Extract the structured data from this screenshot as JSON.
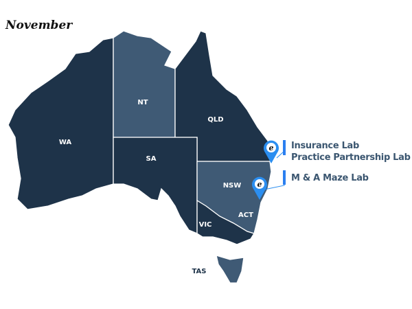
{
  "title": "November",
  "colors": {
    "state_dark": "#1e3349",
    "state_light": "#3f5a75",
    "pin": "#2b8ef0",
    "label_text": "#3b5670"
  },
  "states": [
    {
      "code": "WA",
      "highlighted": false
    },
    {
      "code": "NT",
      "highlighted": true
    },
    {
      "code": "QLD",
      "highlighted": false
    },
    {
      "code": "SA",
      "highlighted": false
    },
    {
      "code": "NSW",
      "highlighted": true
    },
    {
      "code": "ACT",
      "highlighted": false
    },
    {
      "code": "VIC",
      "highlighted": false
    },
    {
      "code": "TAS",
      "highlighted": true
    }
  ],
  "pins": [
    {
      "icon": "e-logo",
      "labels": [
        "Insurance Lab",
        "Practice Partnership Lab"
      ]
    },
    {
      "icon": "e-logo",
      "labels": [
        "M & A Maze Lab"
      ]
    }
  ]
}
